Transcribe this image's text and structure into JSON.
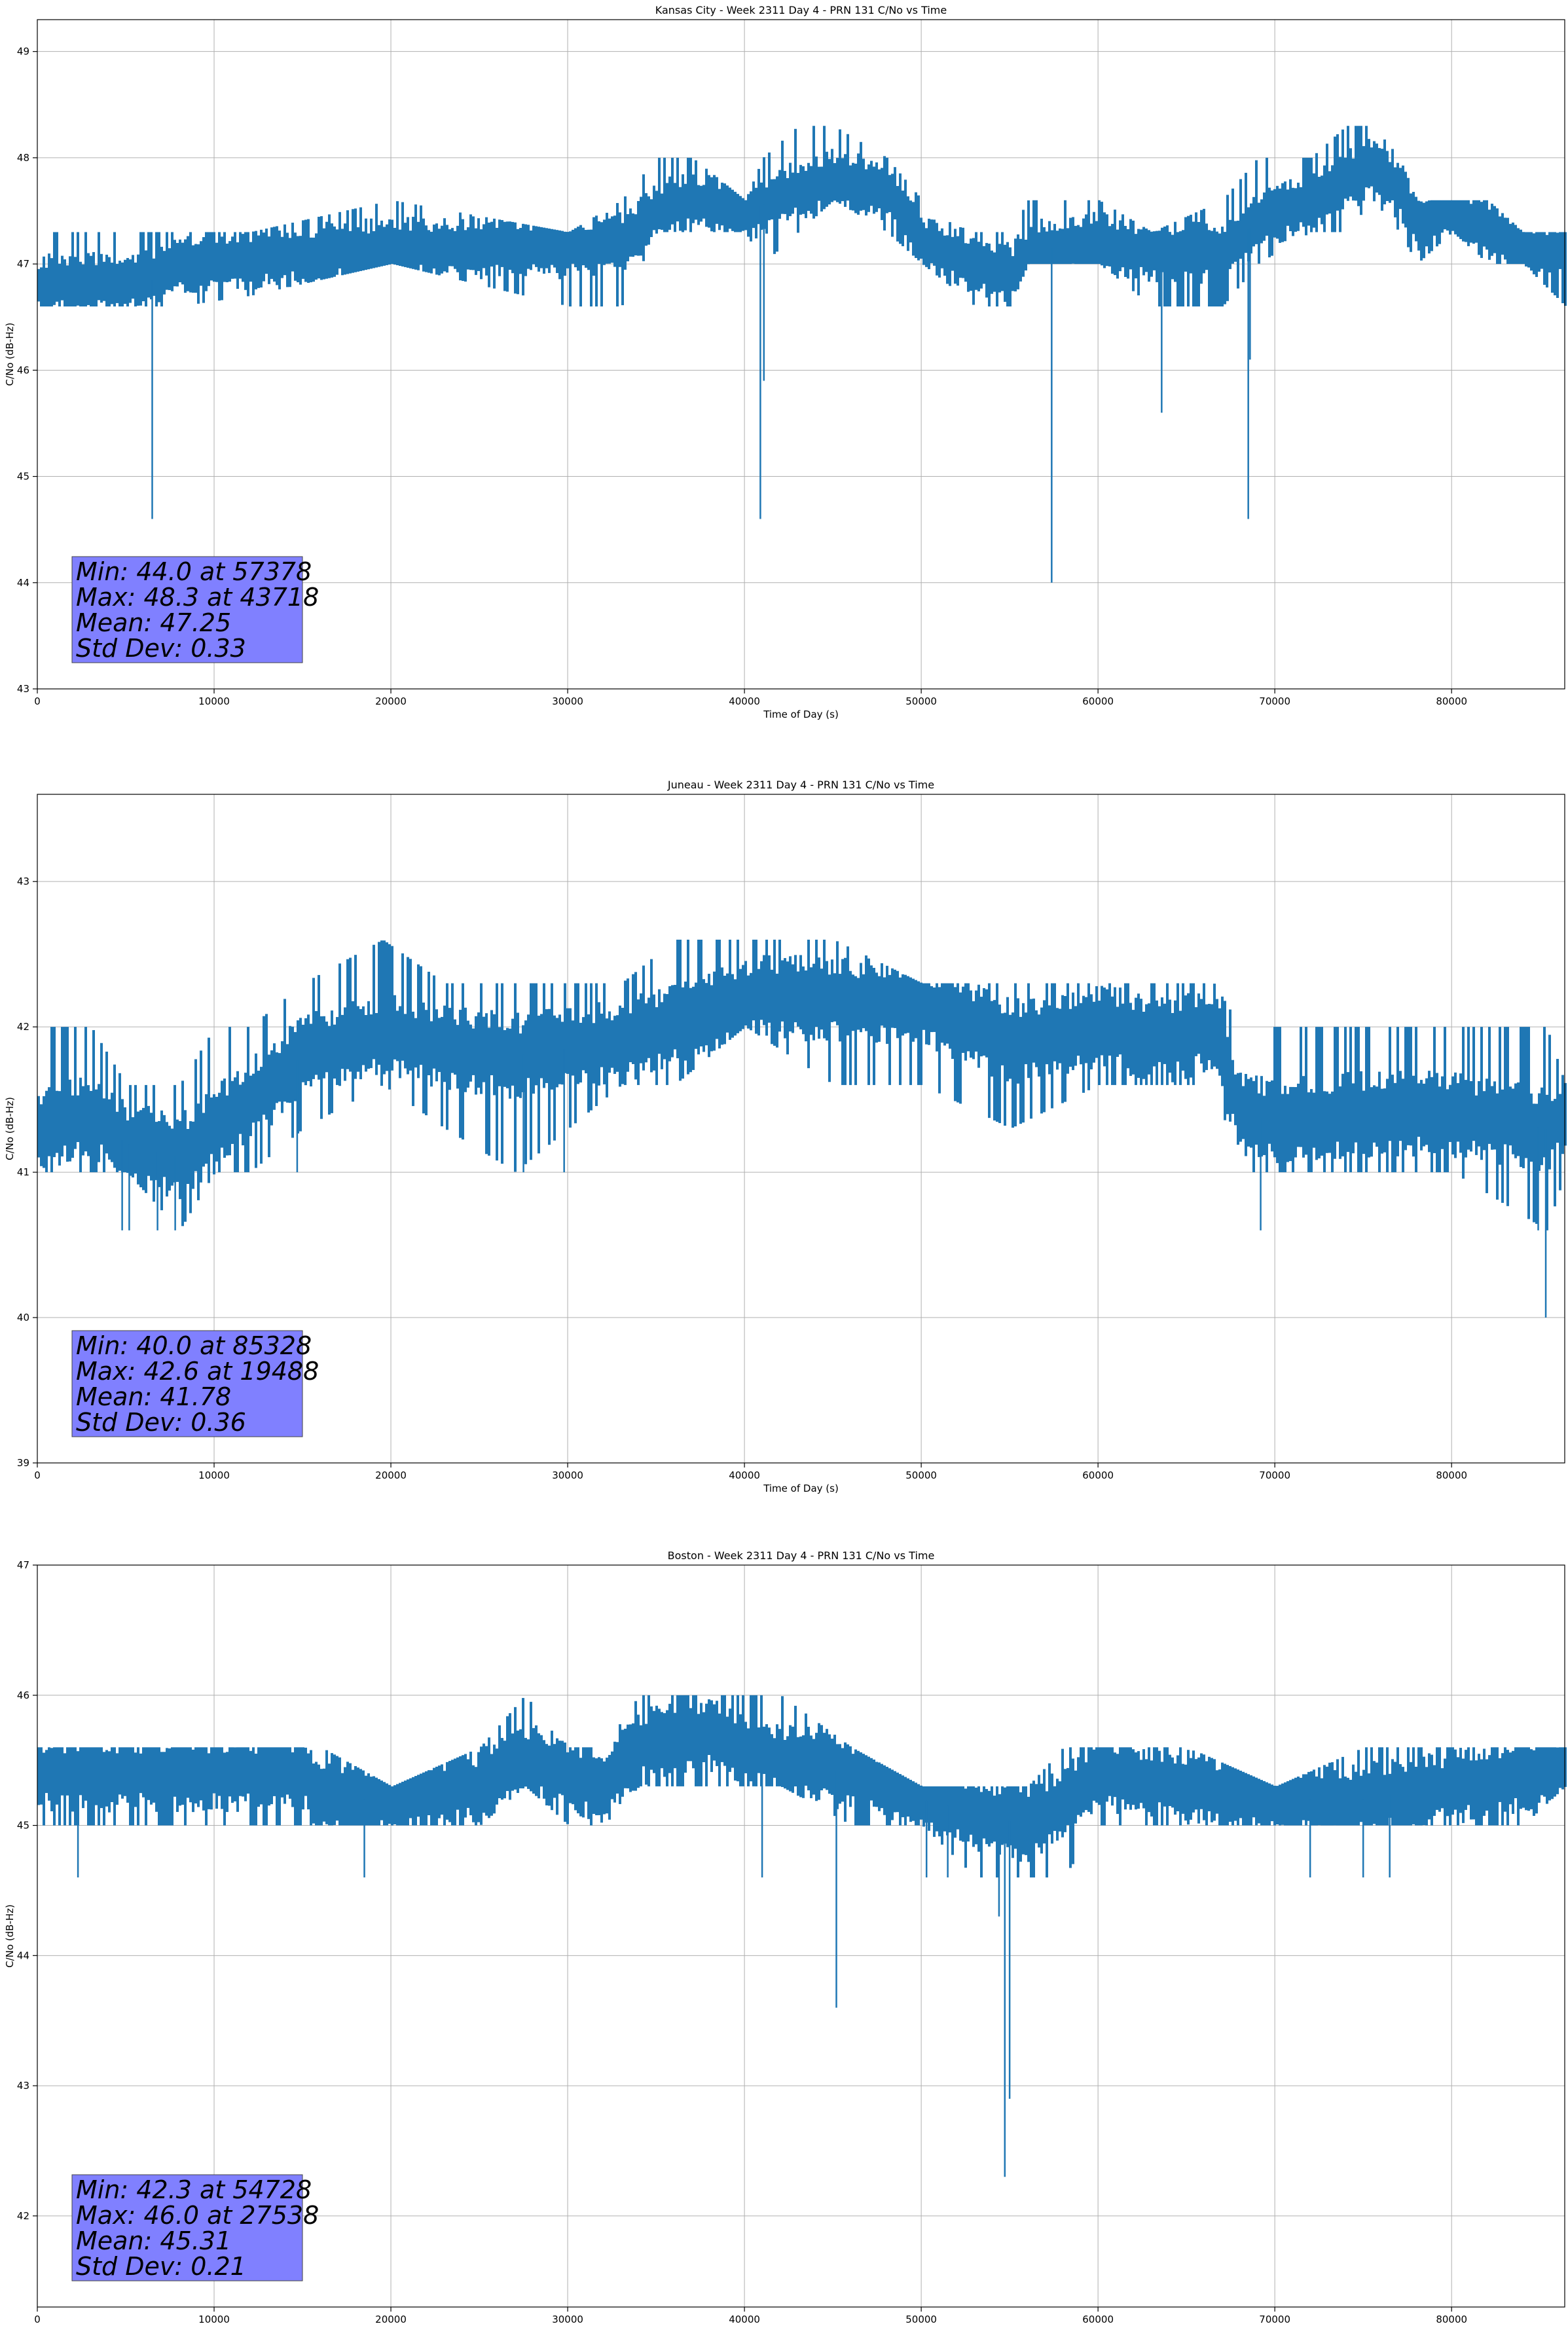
{
  "chart_data": [
    {
      "type": "line",
      "title": "Kansas City - Week 2311 Day 4 - PRN 131 C/No vs Time",
      "xlabel": "Time of Day (s)",
      "ylabel": "C/No (dB-Hz)",
      "xlim": [
        0,
        86400
      ],
      "ylim": [
        43,
        49.3
      ],
      "xticks": [
        0,
        10000,
        20000,
        30000,
        40000,
        50000,
        60000,
        70000,
        80000
      ],
      "yticks": [
        43,
        44,
        45,
        46,
        47,
        48,
        49
      ],
      "grid": true,
      "color": "#1f77b4",
      "series": [
        {
          "x": [
            0,
            6500,
            8000,
            12000,
            20000,
            30000,
            33000,
            35000,
            37000,
            40000,
            41000,
            43000,
            45000,
            48000,
            50000,
            53000,
            55000,
            56000,
            57378,
            60000,
            63000,
            67000,
            69000,
            72000,
            74000,
            75500,
            77000,
            78000,
            80000,
            82000,
            84000,
            86400
          ],
          "y": [
            46.8,
            46.85,
            47.0,
            47.05,
            47.15,
            47.15,
            47.2,
            47.5,
            47.6,
            47.5,
            47.55,
            47.7,
            47.8,
            47.7,
            47.2,
            47.0,
            46.9,
            47.1,
            47.15,
            47.2,
            47.1,
            47.1,
            47.4,
            47.6,
            47.8,
            47.9,
            47.7,
            47.4,
            47.5,
            47.3,
            47.15,
            47.1
          ],
          "low": [
            46.6,
            46.6,
            46.6,
            46.7,
            47.0,
            46.6,
            46.6,
            47.3,
            47.3,
            47.3,
            47.0,
            47.3,
            47.6,
            47.3,
            47.0,
            46.6,
            46.6,
            47.0,
            47.0,
            47.0,
            46.6,
            46.6,
            47.0,
            47.3,
            47.3,
            47.6,
            47.3,
            47.0,
            47.3,
            47.0,
            47.0,
            46.6
          ],
          "high": [
            47.3,
            47.3,
            47.3,
            47.3,
            47.6,
            47.3,
            47.6,
            48.0,
            48.0,
            47.6,
            48.0,
            48.3,
            48.3,
            48.0,
            47.6,
            47.3,
            47.3,
            47.6,
            47.6,
            47.6,
            47.3,
            47.6,
            48.0,
            48.0,
            48.3,
            48.3,
            48.0,
            47.6,
            47.6,
            47.6,
            47.3,
            47.3
          ],
          "dips": [
            [
              6500,
              44.6
            ],
            [
              40900,
              44.6
            ],
            [
              41100,
              45.9
            ],
            [
              57378,
              44.0
            ],
            [
              63600,
              45.6
            ],
            [
              68500,
              44.6
            ],
            [
              68600,
              46.1
            ]
          ]
        }
      ],
      "annotation": [
        "Min: 44.0 at 57378",
        "Max: 48.3 at 43718",
        "Mean: 47.25",
        "Std Dev: 0.33"
      ]
    },
    {
      "type": "line",
      "title": "Juneau - Week 2311 Day 4 - PRN 131 C/No vs Time",
      "xlabel": "Time of Day (s)",
      "ylabel": "C/No (dB-Hz)",
      "xlim": [
        0,
        86400
      ],
      "ylim": [
        39,
        43.6
      ],
      "xticks": [
        0,
        10000,
        20000,
        30000,
        40000,
        50000,
        60000,
        70000,
        80000
      ],
      "yticks": [
        39,
        40,
        41,
        42,
        43
      ],
      "grid": true,
      "color": "#1f77b4",
      "series": [
        {
          "x": [
            0,
            3000,
            5000,
            8000,
            10000,
            12000,
            15000,
            19488,
            23000,
            27000,
            30000,
            33000,
            36000,
            40000,
            45000,
            50000,
            55000,
            60000,
            64000,
            66500,
            68000,
            70000,
            75000,
            80000,
            85328,
            86400
          ],
          "y": [
            41.3,
            41.4,
            41.2,
            41.1,
            41.3,
            41.5,
            41.8,
            41.95,
            41.85,
            41.8,
            41.85,
            41.9,
            42.0,
            42.2,
            42.2,
            42.15,
            41.9,
            42.0,
            41.9,
            42.0,
            41.4,
            41.35,
            41.4,
            41.4,
            41.3,
            41.4
          ],
          "low": [
            41.0,
            41.0,
            41.0,
            40.6,
            41.0,
            41.0,
            41.3,
            41.6,
            41.3,
            41.0,
            41.3,
            41.6,
            41.6,
            42.0,
            41.6,
            41.6,
            41.3,
            41.6,
            41.6,
            41.6,
            41.0,
            41.0,
            41.0,
            41.0,
            40.6,
            41.0
          ],
          "high": [
            42.0,
            42.0,
            41.6,
            41.6,
            42.0,
            42.0,
            42.3,
            42.6,
            42.3,
            42.3,
            42.3,
            42.3,
            42.6,
            42.6,
            42.6,
            42.3,
            42.3,
            42.3,
            42.3,
            42.3,
            42.0,
            42.0,
            42.0,
            42.0,
            42.0,
            41.6
          ],
          "dips": [
            [
              4800,
              40.6
            ],
            [
              5200,
              40.6
            ],
            [
              6800,
              40.6
            ],
            [
              7800,
              40.6
            ],
            [
              14700,
              41.0
            ],
            [
              27500,
              41.0
            ],
            [
              29800,
              41.0
            ],
            [
              69200,
              40.6
            ],
            [
              84900,
              40.6
            ],
            [
              85328,
              40.0
            ]
          ]
        }
      ],
      "annotation": [
        "Min: 40.0 at 85328",
        "Max: 42.6 at 19488",
        "Mean: 41.78",
        "Std Dev: 0.36"
      ]
    },
    {
      "type": "line",
      "title": "Boston - Week 2311 Day 4 - PRN 131 C/No vs Time",
      "xlabel": "Time of Day (s)",
      "ylabel": "C/No (dB-Hz)",
      "xlim": [
        0,
        86400
      ],
      "ylim": [
        41.3,
        47
      ],
      "xticks": [
        0,
        10000,
        20000,
        30000,
        40000,
        50000,
        60000,
        70000,
        80000
      ],
      "yticks": [
        42,
        43,
        44,
        45,
        46,
        47
      ],
      "grid": true,
      "color": "#1f77b4",
      "series": [
        {
          "x": [
            0,
            5000,
            10000,
            15000,
            16000,
            20000,
            25000,
            27538,
            30000,
            32000,
            34000,
            38000,
            42000,
            46000,
            50000,
            53000,
            56000,
            58000,
            60000,
            65000,
            70000,
            75000,
            80000,
            84000,
            86400
          ],
          "y": [
            45.4,
            45.4,
            45.4,
            45.4,
            45.2,
            45.2,
            45.3,
            45.5,
            45.4,
            45.3,
            45.6,
            45.7,
            45.5,
            45.4,
            45.2,
            45.1,
            45.0,
            45.2,
            45.4,
            45.3,
            45.2,
            45.2,
            45.3,
            45.4,
            45.45
          ],
          "low": [
            45.0,
            45.0,
            45.0,
            45.0,
            45.0,
            45.0,
            45.0,
            45.3,
            45.0,
            45.0,
            45.3,
            45.3,
            45.3,
            45.0,
            45.0,
            44.6,
            44.6,
            44.6,
            45.0,
            45.0,
            45.0,
            45.0,
            45.0,
            45.0,
            45.3
          ],
          "high": [
            45.6,
            45.6,
            45.6,
            45.6,
            45.6,
            45.3,
            45.6,
            46.0,
            45.6,
            45.6,
            46.0,
            46.0,
            46.0,
            45.6,
            45.3,
            45.3,
            45.3,
            45.6,
            45.6,
            45.6,
            45.3,
            45.6,
            45.6,
            45.6,
            45.6
          ],
          "dips": [
            [
              2300,
              44.6
            ],
            [
              18500,
              44.6
            ],
            [
              41000,
              44.6
            ],
            [
              45200,
              43.6
            ],
            [
              50300,
              44.6
            ],
            [
              51500,
              44.6
            ],
            [
              54400,
              44.3
            ],
            [
              54728,
              42.3
            ],
            [
              55000,
              42.9
            ],
            [
              72000,
              44.6
            ],
            [
              75000,
              44.6
            ],
            [
              76500,
              44.6
            ]
          ]
        }
      ],
      "annotation": [
        "Min: 42.3 at 54728",
        "Max: 46.0 at 27538",
        "Mean: 45.31",
        "Std Dev: 0.21"
      ]
    }
  ]
}
